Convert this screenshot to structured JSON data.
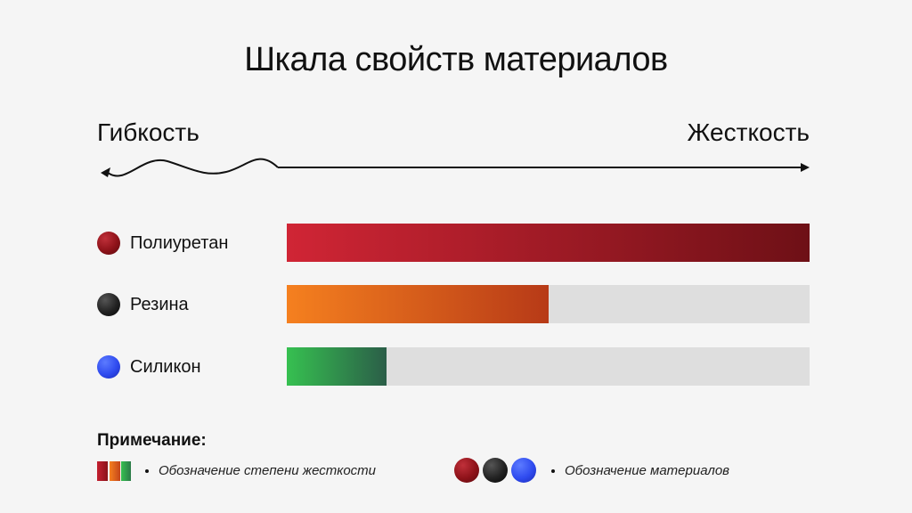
{
  "chart_data": {
    "type": "bar",
    "title": "Шкала свойств материалов",
    "scale": {
      "min_label": "Гибкость",
      "max_label": "Жесткость"
    },
    "categories": [
      "Полиуретан",
      "Резина",
      "Силикон"
    ],
    "values": [
      1.0,
      0.5,
      0.19
    ],
    "ylim": [
      0,
      1
    ],
    "colors": {
      "Полиуретан": "#b01f2a",
      "Резина": "#e0621d",
      "Силикон": "#33a050"
    },
    "grid": false
  },
  "note": {
    "title": "Примечание:",
    "stiffness_legend": "Обозначение степени жесткости",
    "materials_legend": "Обозначение материалов"
  }
}
